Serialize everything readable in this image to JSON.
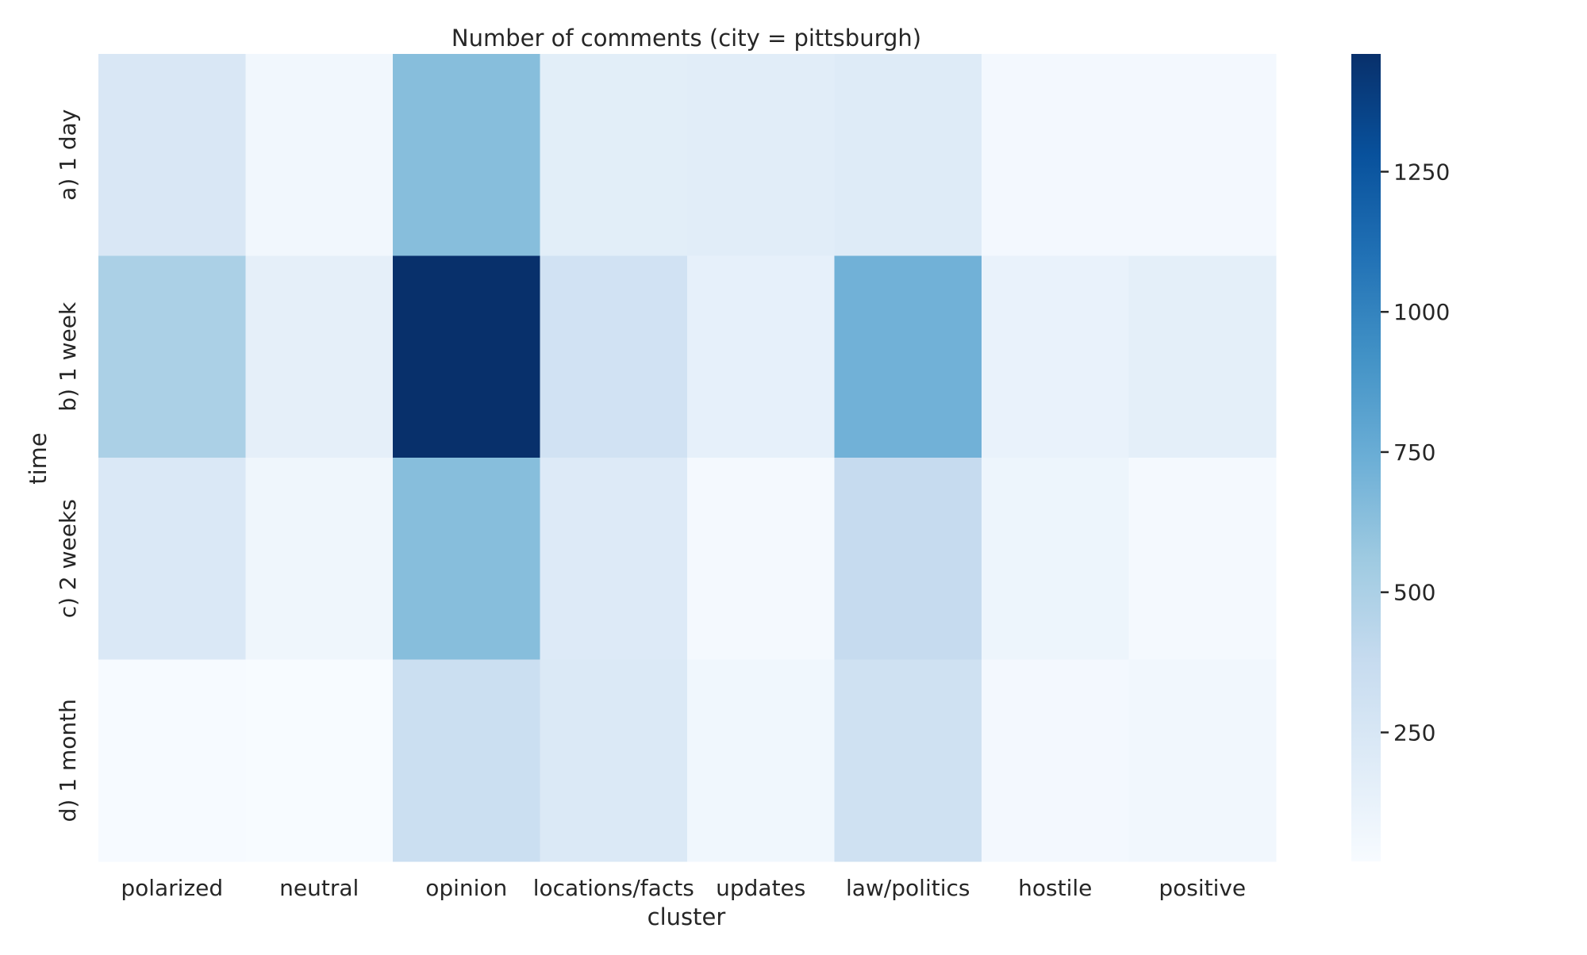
{
  "chart_data": {
    "type": "heatmap",
    "title": "Number of comments (city = pittsburgh)",
    "xlabel": "cluster",
    "ylabel": "time",
    "x_categories": [
      "polarized",
      "neutral",
      "opinion",
      "locations/facts",
      "updates",
      "law/politics",
      "hostile",
      "positive"
    ],
    "y_categories": [
      "a) 1 day",
      "b) 1 week",
      "c) 2 weeks",
      "d) 1 month"
    ],
    "values": [
      [
        240,
        60,
        640,
        170,
        180,
        200,
        50,
        50
      ],
      [
        500,
        150,
        1460,
        300,
        140,
        720,
        120,
        160
      ],
      [
        230,
        80,
        640,
        210,
        40,
        380,
        90,
        40
      ],
      [
        30,
        20,
        340,
        220,
        70,
        310,
        50,
        60
      ]
    ],
    "colorbar": {
      "range": [
        20,
        1460
      ],
      "ticks": [
        250,
        500,
        750,
        1000,
        1250
      ],
      "colormap": "Blues",
      "colors": [
        "#f7fbff",
        "#deebf7",
        "#c6dbef",
        "#9ecae1",
        "#6baed6",
        "#4292c6",
        "#2171b5",
        "#08519c",
        "#08306b"
      ]
    },
    "grid": false
  }
}
